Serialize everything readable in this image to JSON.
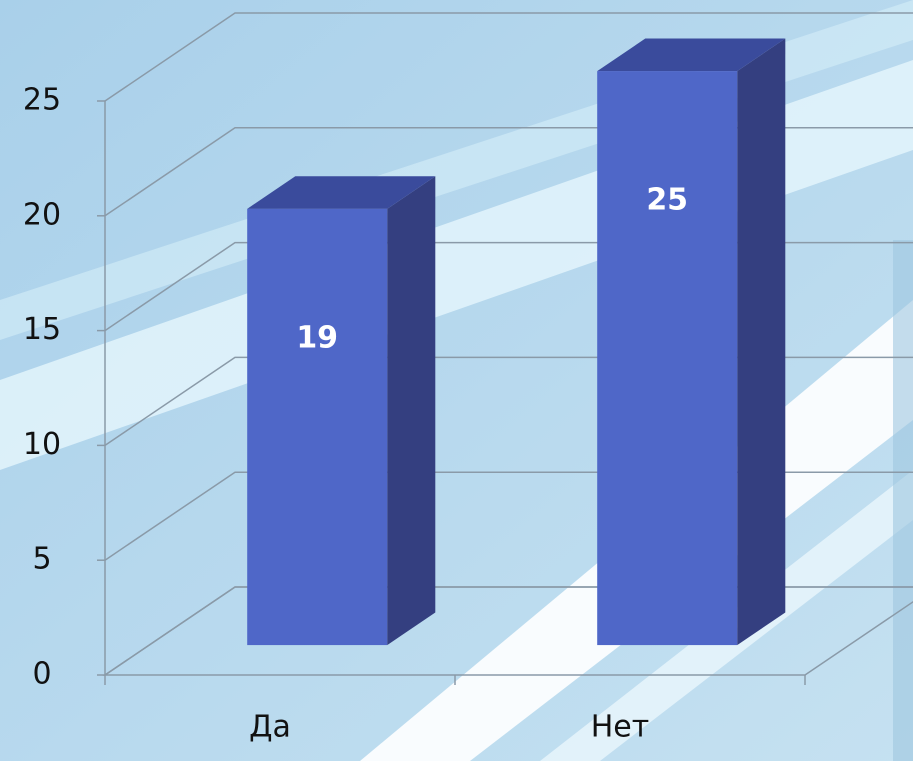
{
  "chart_data": {
    "type": "bar3d",
    "categories": [
      "Да",
      "Нет"
    ],
    "values": [
      19,
      25
    ],
    "color": "#4f67c8",
    "ylim": [
      0,
      25
    ],
    "yticks": [
      0,
      5,
      10,
      15,
      20,
      25
    ],
    "grid": true
  }
}
